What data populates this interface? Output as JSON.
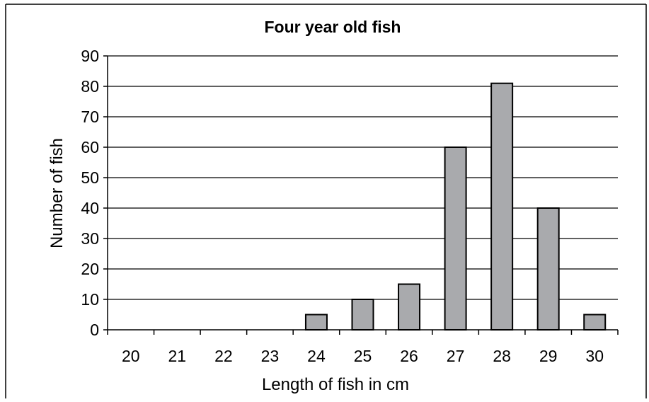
{
  "chart_data": {
    "type": "bar",
    "title": "Four year old fish",
    "xlabel": "Length of fish in cm",
    "ylabel": "Number of fish",
    "categories": [
      "20",
      "21",
      "22",
      "23",
      "24",
      "25",
      "26",
      "27",
      "28",
      "29",
      "30"
    ],
    "values": [
      0,
      0,
      0,
      0,
      5,
      10,
      15,
      60,
      81,
      40,
      5
    ],
    "ylim": [
      0,
      90
    ],
    "yticks": [
      0,
      10,
      20,
      30,
      40,
      50,
      60,
      70,
      80,
      90
    ],
    "grid": true,
    "legend": "none",
    "colors": {
      "bar_fill": "#a9aaad",
      "bar_stroke": "#000000",
      "gridline": "#000000",
      "background": "#ffffff"
    }
  }
}
